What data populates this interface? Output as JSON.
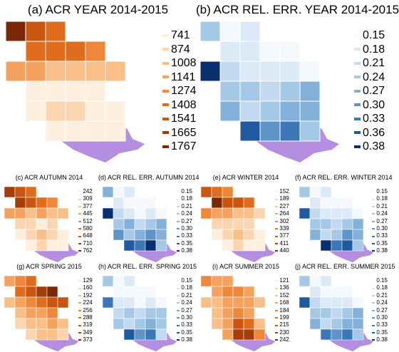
{
  "colors": {
    "land": "#b48ee0",
    "border": "#ffffff"
  },
  "chart_data": [
    {
      "id": "a",
      "type": "heatmap",
      "title": "(a) ACR YEAR 2014-2015",
      "palette": "orange",
      "legend_labels": [
        "741",
        "874",
        "1008",
        "1141",
        "1274",
        "1408",
        "1541",
        "1665",
        "1767"
      ],
      "legend_colors": [
        "#fdeedd",
        "#fbd5b0",
        "#f8bf88",
        "#f4a25e",
        "#ee873a",
        "#e06c1d",
        "#c9560f",
        "#a63c08",
        "#7a2806"
      ],
      "grid": [
        [
          8,
          6,
          5,
          null,
          null,
          null
        ],
        [
          null,
          5,
          5,
          5,
          4,
          null
        ],
        [
          3,
          3,
          2,
          2,
          2,
          2
        ],
        [
          null,
          0,
          0,
          0,
          0,
          null
        ],
        [
          null,
          0,
          1,
          1,
          0,
          0
        ],
        [
          null,
          null,
          0,
          0,
          0,
          0
        ]
      ]
    },
    {
      "id": "b",
      "type": "heatmap",
      "title": "(b) ACR REL. ERR. YEAR 2014-2015",
      "palette": "blue",
      "legend_labels": [
        "0.15",
        "0.18",
        "0.21",
        "0.24",
        "0.27",
        "0.30",
        "0.33",
        "0.36",
        "0.38"
      ],
      "legend_colors": [
        "#f5f9fe",
        "#dce9f7",
        "#c2d9ef",
        "#a4c8e6",
        "#84b1da",
        "#5e94c8",
        "#3c78b8",
        "#1f5aa0",
        "#0a2f6e"
      ],
      "grid": [
        [
          3,
          0,
          1,
          null,
          null,
          null
        ],
        [
          null,
          1,
          1,
          0,
          0,
          null
        ],
        [
          8,
          2,
          1,
          1,
          1,
          0
        ],
        [
          null,
          3,
          3,
          2,
          3,
          4
        ],
        [
          null,
          4,
          2,
          3,
          4,
          4
        ],
        [
          null,
          null,
          7,
          5,
          6,
          3
        ]
      ]
    },
    {
      "id": "c",
      "type": "heatmap",
      "title": "(c) ACR AUTUMN 2014",
      "palette": "orange",
      "legend_labels": [
        "242",
        "309",
        "377",
        "445",
        "512",
        "580",
        "648",
        "710",
        "762"
      ],
      "legend_colors": [
        "#fdeedd",
        "#fbd5b0",
        "#f8bf88",
        "#f4a25e",
        "#ee873a",
        "#e06c1d",
        "#c9560f",
        "#a63c08",
        "#7a2806"
      ],
      "grid": [
        [
          7,
          6,
          5,
          null,
          null,
          null
        ],
        [
          null,
          7,
          6,
          5,
          4,
          null
        ],
        [
          3,
          3,
          2,
          3,
          2,
          2
        ],
        [
          null,
          1,
          1,
          0,
          1,
          null
        ],
        [
          null,
          0,
          1,
          2,
          1,
          0
        ],
        [
          null,
          null,
          0,
          1,
          0,
          0
        ]
      ]
    },
    {
      "id": "d",
      "type": "heatmap",
      "title": "(d) ACR REL. ERR. AUTUMN 2014",
      "palette": "blue",
      "legend_labels": [
        "0.15",
        "0.18",
        "0.21",
        "0.24",
        "0.27",
        "0.30",
        "0.33",
        "0.35",
        "0.38"
      ],
      "legend_colors": [
        "#f5f9fe",
        "#dce9f7",
        "#c2d9ef",
        "#a4c8e6",
        "#84b1da",
        "#5e94c8",
        "#3c78b8",
        "#1f5aa0",
        "#0a2f6e"
      ],
      "grid": [
        [
          4,
          0,
          1,
          null,
          null,
          null
        ],
        [
          null,
          1,
          0,
          0,
          0,
          null
        ],
        [
          8,
          2,
          1,
          0,
          1,
          0
        ],
        [
          null,
          3,
          4,
          2,
          3,
          4
        ],
        [
          null,
          5,
          3,
          4,
          5,
          4
        ],
        [
          null,
          null,
          7,
          6,
          8,
          3
        ]
      ]
    },
    {
      "id": "e",
      "type": "heatmap",
      "title": "(e) ACR WINTER 2014",
      "palette": "orange",
      "legend_labels": [
        "152",
        "189",
        "227",
        "264",
        "302",
        "339",
        "377",
        "411",
        "440"
      ],
      "legend_colors": [
        "#fdeedd",
        "#fbd5b0",
        "#f8bf88",
        "#f4a25e",
        "#ee873a",
        "#e06c1d",
        "#c9560f",
        "#a63c08",
        "#7a2806"
      ],
      "grid": [
        [
          6,
          5,
          4,
          null,
          null,
          null
        ],
        [
          null,
          8,
          6,
          6,
          5,
          null
        ],
        [
          4,
          3,
          3,
          2,
          2,
          1
        ],
        [
          null,
          1,
          1,
          1,
          1,
          null
        ],
        [
          null,
          0,
          1,
          2,
          1,
          0
        ],
        [
          null,
          null,
          0,
          1,
          0,
          0
        ]
      ]
    },
    {
      "id": "f",
      "type": "heatmap",
      "title": "(f) ACR REL. ERR. WINTER 2014",
      "palette": "blue",
      "legend_labels": [
        "0.15",
        "0.18",
        "0.21",
        "0.24",
        "0.27",
        "0.30",
        "0.33",
        "0.35",
        "0.38"
      ],
      "legend_colors": [
        "#f5f9fe",
        "#dce9f7",
        "#c2d9ef",
        "#a4c8e6",
        "#84b1da",
        "#5e94c8",
        "#3c78b8",
        "#1f5aa0",
        "#0a2f6e"
      ],
      "grid": [
        [
          3,
          0,
          1,
          null,
          null,
          null
        ],
        [
          null,
          1,
          0,
          0,
          0,
          null
        ],
        [
          7,
          2,
          1,
          1,
          1,
          0
        ],
        [
          null,
          3,
          3,
          2,
          3,
          4
        ],
        [
          null,
          4,
          2,
          3,
          5,
          4
        ],
        [
          null,
          null,
          8,
          6,
          7,
          3
        ]
      ]
    },
    {
      "id": "g",
      "type": "heatmap",
      "title": "(g) ACR SPRING 2015",
      "palette": "orange",
      "legend_labels": [
        "129",
        "160",
        "192",
        "224",
        "256",
        "288",
        "319",
        "349",
        "373"
      ],
      "legend_colors": [
        "#fdeedd",
        "#fbd5b0",
        "#f8bf88",
        "#f4a25e",
        "#ee873a",
        "#e06c1d",
        "#c9560f",
        "#a63c08",
        "#7a2806"
      ],
      "grid": [
        [
          3,
          4,
          5,
          null,
          null,
          null
        ],
        [
          null,
          5,
          6,
          7,
          8,
          null
        ],
        [
          2,
          3,
          4,
          5,
          6,
          6
        ],
        [
          null,
          2,
          3,
          3,
          4,
          null
        ],
        [
          null,
          1,
          2,
          2,
          3,
          2
        ],
        [
          null,
          null,
          1,
          2,
          2,
          1
        ]
      ]
    },
    {
      "id": "h",
      "type": "heatmap",
      "title": "(h) ACR REL. ERR. SPRING 2015",
      "palette": "blue",
      "legend_labels": [
        "0.15",
        "0.18",
        "0.21",
        "0.24",
        "0.27",
        "0.30",
        "0.33",
        "0.35",
        "0.38"
      ],
      "legend_colors": [
        "#f5f9fe",
        "#dce9f7",
        "#c2d9ef",
        "#a4c8e6",
        "#84b1da",
        "#5e94c8",
        "#3c78b8",
        "#1f5aa0",
        "#0a2f6e"
      ],
      "grid": [
        [
          3,
          0,
          1,
          null,
          null,
          null
        ],
        [
          null,
          0,
          0,
          0,
          0,
          null
        ],
        [
          6,
          1,
          1,
          0,
          1,
          0
        ],
        [
          null,
          2,
          3,
          2,
          3,
          3
        ],
        [
          null,
          3,
          2,
          3,
          4,
          3
        ],
        [
          null,
          null,
          7,
          5,
          6,
          2
        ]
      ]
    },
    {
      "id": "i",
      "type": "heatmap",
      "title": "(i) ACR SUMMER 2015",
      "palette": "orange",
      "legend_labels": [
        "121",
        "136",
        "152",
        "168",
        "184",
        "199",
        "215",
        "230",
        "242"
      ],
      "legend_colors": [
        "#fdeedd",
        "#fbd5b0",
        "#f8bf88",
        "#f4a25e",
        "#ee873a",
        "#e06c1d",
        "#c9560f",
        "#a63c08",
        "#7a2806"
      ],
      "grid": [
        [
          4,
          3,
          3,
          null,
          null,
          null
        ],
        [
          null,
          3,
          4,
          4,
          3,
          null
        ],
        [
          2,
          2,
          3,
          3,
          3,
          2
        ],
        [
          null,
          2,
          3,
          4,
          3,
          null
        ],
        [
          null,
          2,
          3,
          6,
          5,
          2
        ],
        [
          null,
          null,
          3,
          7,
          7,
          4
        ]
      ]
    },
    {
      "id": "j",
      "type": "heatmap",
      "title": "(j) ACR REL. ERR. SUMMER 2015",
      "palette": "blue",
      "legend_labels": [
        "0.15",
        "0.18",
        "0.21",
        "0.24",
        "0.27",
        "0.30",
        "0.33",
        "0.35",
        "0.38"
      ],
      "legend_colors": [
        "#f5f9fe",
        "#dce9f7",
        "#c2d9ef",
        "#a4c8e6",
        "#84b1da",
        "#5e94c8",
        "#3c78b8",
        "#1f5aa0",
        "#0a2f6e"
      ],
      "grid": [
        [
          3,
          0,
          1,
          null,
          null,
          null
        ],
        [
          null,
          1,
          0,
          0,
          0,
          null
        ],
        [
          7,
          2,
          1,
          1,
          1,
          0
        ],
        [
          null,
          3,
          3,
          2,
          3,
          4
        ],
        [
          null,
          4,
          2,
          3,
          4,
          4
        ],
        [
          null,
          null,
          6,
          5,
          6,
          3
        ]
      ]
    }
  ]
}
